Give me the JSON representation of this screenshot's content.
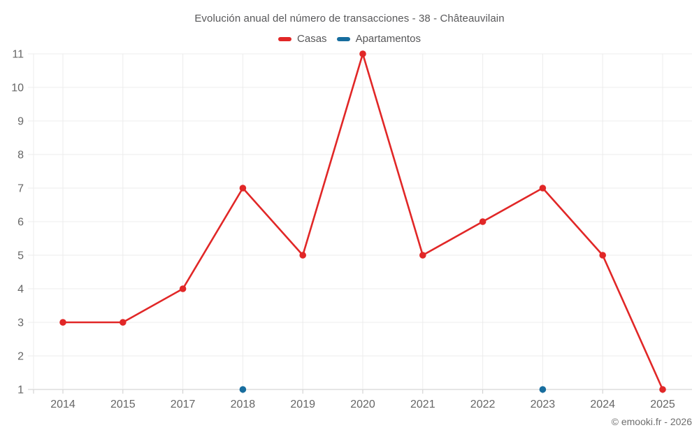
{
  "header": {
    "title": "Evolución anual del número de transacciones - 38 - Châteauvilain"
  },
  "footer": {
    "copyright": "© emooki.fr - 2026"
  },
  "chart_data": {
    "type": "line",
    "title": "Evolución anual del número de transacciones - 38 - Châteauvilain",
    "xlabel": "",
    "ylabel": "",
    "categories": [
      "2014",
      "2015",
      "2017",
      "2018",
      "2019",
      "2020",
      "2021",
      "2022",
      "2023",
      "2024",
      "2025"
    ],
    "series": [
      {
        "name": "Casas",
        "color": "#e12727",
        "values": [
          3,
          3,
          4,
          7,
          5,
          11,
          5,
          6,
          7,
          5,
          1
        ]
      },
      {
        "name": "Apartamentos",
        "color": "#176d9e",
        "values": [
          null,
          null,
          null,
          1,
          null,
          null,
          null,
          null,
          1,
          null,
          null
        ]
      }
    ],
    "ylim": [
      1,
      11
    ],
    "y_ticks": [
      1,
      2,
      3,
      4,
      5,
      6,
      7,
      8,
      9,
      10,
      11
    ],
    "grid": true,
    "legend_position": "top"
  }
}
